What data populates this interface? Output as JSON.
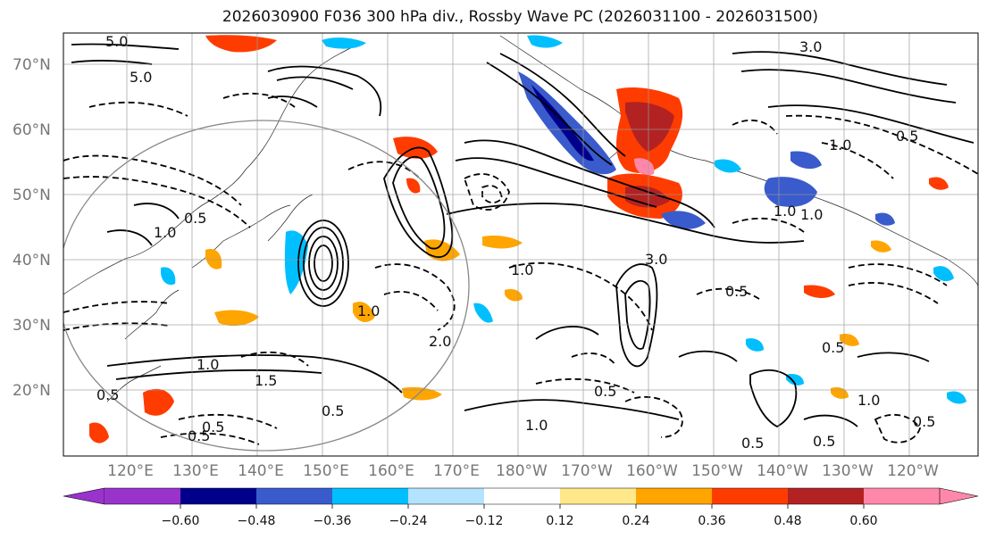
{
  "title": "2026030900 F036 300 hPa div., Rossby Wave PC (2026031100 - 2026031500)",
  "lat_labels": [
    "70°N",
    "60°N",
    "50°N",
    "40°N",
    "30°N",
    "20°N"
  ],
  "lon_labels": [
    "120°E",
    "130°E",
    "140°E",
    "150°E",
    "160°E",
    "170°E",
    "180°W",
    "170°W",
    "160°W",
    "150°W",
    "140°W",
    "130°W",
    "120°W"
  ],
  "colorbar": {
    "ticks": [
      "−0.60",
      "−0.48",
      "−0.36",
      "−0.24",
      "−0.12",
      "0.12",
      "0.24",
      "0.36",
      "0.48",
      "0.60"
    ],
    "colors": [
      "#9933cc",
      "#00008b",
      "#3a5bcc",
      "#00bfff",
      "#b3e3ff",
      "#ffffff",
      "#ffe88a",
      "#ffa500",
      "#ff3c00",
      "#b22222",
      "#ff88aa"
    ]
  },
  "contour_labels": [
    "5.0",
    "5.0",
    "3.0",
    "1.0",
    "0.5",
    "1.0",
    "0.5",
    "1.0",
    "0.5",
    "1.5",
    "2.0",
    "1.0",
    "0.5",
    "0.5",
    "1.0",
    "0.5",
    "0.5",
    "1.0",
    "0.5",
    "3.0",
    "1.0",
    "0.5",
    "0.5",
    "1.0",
    "1.0",
    "0.5",
    "0.5"
  ]
}
